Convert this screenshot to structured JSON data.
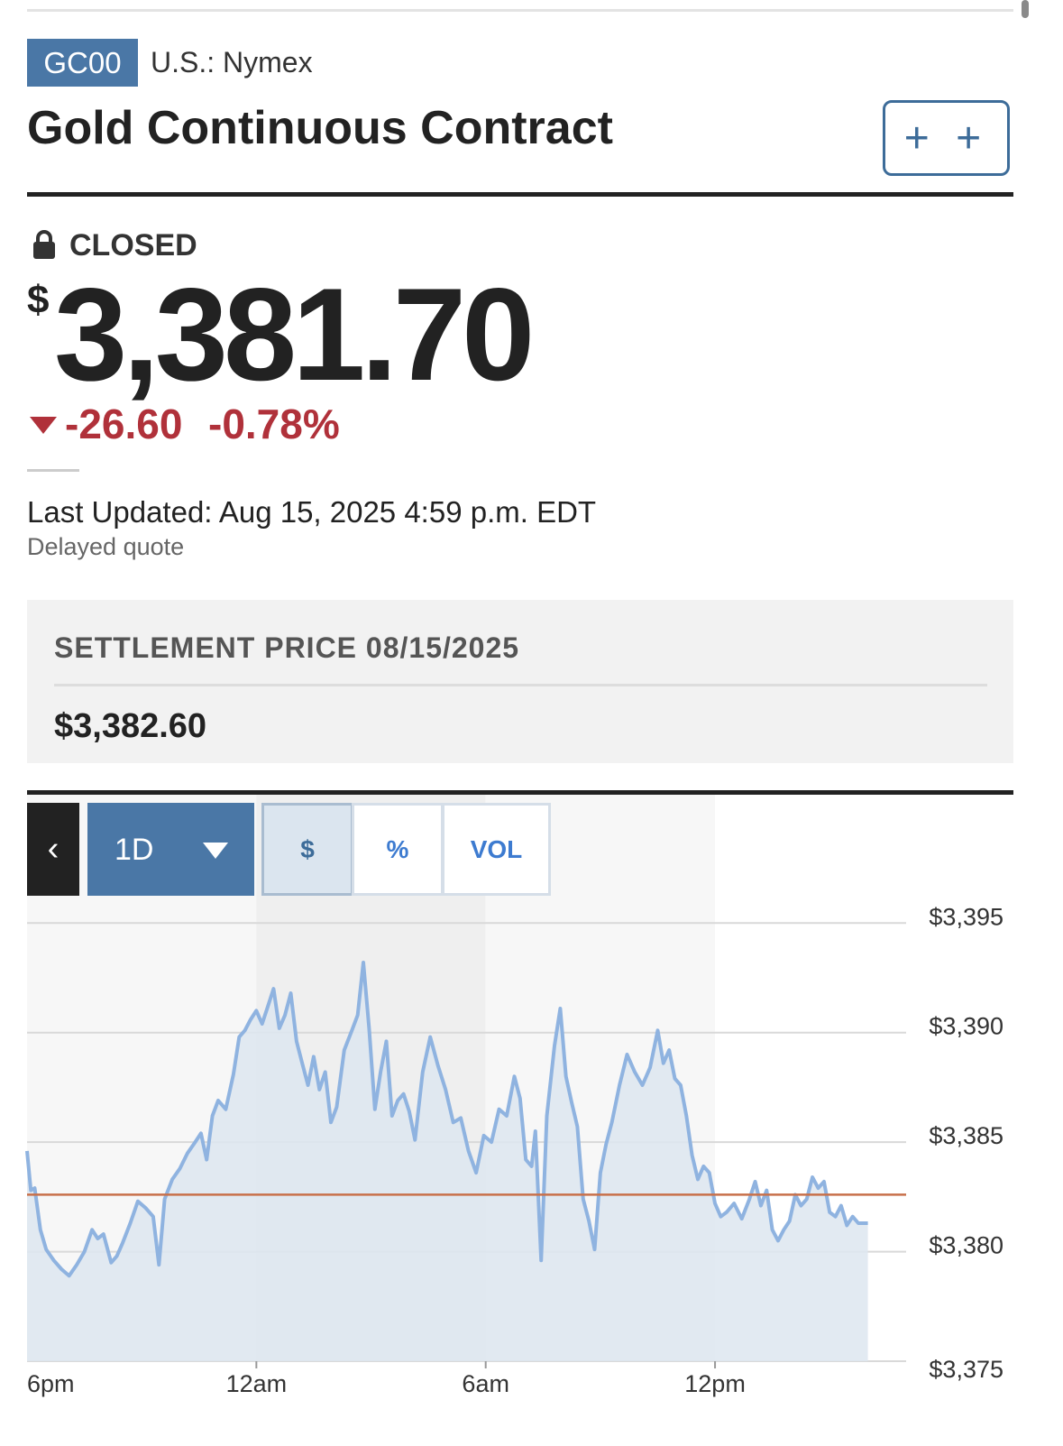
{
  "header": {
    "ticker": "GC00",
    "exchange": "U.S.: Nymex",
    "title": "Gold Continuous Contract",
    "watchlist_button": "+ +"
  },
  "quote": {
    "status": "CLOSED",
    "currency_symbol": "$",
    "price": "3,381.70",
    "change": "-26.60",
    "change_percent": "-0.78%",
    "last_updated": "Last Updated: Aug 15, 2025 4:59 p.m. EDT",
    "delayed_note": "Delayed quote"
  },
  "settlement": {
    "label": "SETTLEMENT PRICE 08/15/2025",
    "value": "$3,382.60"
  },
  "chart_controls": {
    "back_glyph": "‹",
    "range_label": "1D",
    "toggles": [
      "$",
      "%",
      "VOL"
    ],
    "selected_toggle": "$"
  },
  "colors": {
    "brand_blue": "#4a77a6",
    "down_red": "#b0313a",
    "line_blue": "#8fb3e0",
    "reference_line": "#c8704a"
  },
  "icons": [
    "lock-icon",
    "down-triangle-icon",
    "chevron-left-icon",
    "caret-down-icon"
  ],
  "chart_data": {
    "type": "area",
    "x_ticks": [
      "6pm",
      "12am",
      "6am",
      "12pm"
    ],
    "y_ticks": [
      "$3,395",
      "$3,390",
      "$3,385",
      "$3,380",
      "$3,375"
    ],
    "ylim": [
      3375,
      3396
    ],
    "reference_value": 3382.6,
    "grid": true,
    "x_hours_span": 23,
    "series": [
      {
        "points": [
          [
            0.0,
            3384.6
          ],
          [
            0.1,
            3382.8
          ],
          [
            0.2,
            3382.9
          ],
          [
            0.35,
            3381.0
          ],
          [
            0.5,
            3380.1
          ],
          [
            0.7,
            3379.6
          ],
          [
            0.9,
            3379.2
          ],
          [
            1.1,
            3378.9
          ],
          [
            1.3,
            3379.4
          ],
          [
            1.5,
            3380.0
          ],
          [
            1.7,
            3381.0
          ],
          [
            1.85,
            3380.6
          ],
          [
            2.0,
            3380.8
          ],
          [
            2.2,
            3379.5
          ],
          [
            2.35,
            3379.8
          ],
          [
            2.5,
            3380.4
          ],
          [
            2.7,
            3381.3
          ],
          [
            2.9,
            3382.3
          ],
          [
            3.1,
            3382.0
          ],
          [
            3.3,
            3381.6
          ],
          [
            3.45,
            3379.4
          ],
          [
            3.6,
            3382.4
          ],
          [
            3.8,
            3383.3
          ],
          [
            4.0,
            3383.8
          ],
          [
            4.2,
            3384.5
          ],
          [
            4.4,
            3385.0
          ],
          [
            4.55,
            3385.4
          ],
          [
            4.7,
            3384.2
          ],
          [
            4.85,
            3386.2
          ],
          [
            5.0,
            3386.9
          ],
          [
            5.2,
            3386.5
          ],
          [
            5.4,
            3388.1
          ],
          [
            5.55,
            3389.8
          ],
          [
            5.7,
            3390.1
          ],
          [
            5.85,
            3390.6
          ],
          [
            6.0,
            3391.0
          ],
          [
            6.15,
            3390.4
          ],
          [
            6.3,
            3391.2
          ],
          [
            6.45,
            3392.0
          ],
          [
            6.6,
            3390.2
          ],
          [
            6.75,
            3390.8
          ],
          [
            6.9,
            3391.8
          ],
          [
            7.05,
            3389.6
          ],
          [
            7.2,
            3388.6
          ],
          [
            7.35,
            3387.6
          ],
          [
            7.5,
            3388.9
          ],
          [
            7.65,
            3387.4
          ],
          [
            7.8,
            3388.2
          ],
          [
            7.95,
            3385.9
          ],
          [
            8.1,
            3386.6
          ],
          [
            8.3,
            3389.2
          ],
          [
            8.5,
            3390.1
          ],
          [
            8.65,
            3390.8
          ],
          [
            8.8,
            3393.2
          ],
          [
            8.95,
            3390.2
          ],
          [
            9.1,
            3386.5
          ],
          [
            9.25,
            3388.2
          ],
          [
            9.4,
            3389.6
          ],
          [
            9.55,
            3386.2
          ],
          [
            9.7,
            3386.9
          ],
          [
            9.85,
            3387.2
          ],
          [
            10.0,
            3386.4
          ],
          [
            10.15,
            3385.1
          ],
          [
            10.35,
            3388.2
          ],
          [
            10.55,
            3389.8
          ],
          [
            10.75,
            3388.5
          ],
          [
            10.95,
            3387.4
          ],
          [
            11.15,
            3385.9
          ],
          [
            11.35,
            3386.1
          ],
          [
            11.55,
            3384.6
          ],
          [
            11.75,
            3383.6
          ],
          [
            11.95,
            3385.3
          ],
          [
            12.15,
            3385.0
          ],
          [
            12.35,
            3386.5
          ],
          [
            12.55,
            3386.2
          ],
          [
            12.75,
            3388.0
          ],
          [
            12.9,
            3387.0
          ],
          [
            13.05,
            3384.2
          ],
          [
            13.2,
            3383.9
          ],
          [
            13.3,
            3385.5
          ],
          [
            13.45,
            3379.6
          ],
          [
            13.6,
            3386.2
          ],
          [
            13.8,
            3389.4
          ],
          [
            13.95,
            3391.1
          ],
          [
            14.1,
            3388.0
          ],
          [
            14.25,
            3386.8
          ],
          [
            14.4,
            3385.7
          ],
          [
            14.55,
            3382.4
          ],
          [
            14.7,
            3381.4
          ],
          [
            14.85,
            3380.1
          ],
          [
            15.0,
            3383.6
          ],
          [
            15.15,
            3384.9
          ],
          [
            15.3,
            3385.9
          ],
          [
            15.5,
            3387.6
          ],
          [
            15.7,
            3389.0
          ],
          [
            15.9,
            3388.2
          ],
          [
            16.1,
            3387.6
          ],
          [
            16.3,
            3388.4
          ],
          [
            16.5,
            3390.1
          ],
          [
            16.65,
            3388.6
          ],
          [
            16.8,
            3389.2
          ],
          [
            16.95,
            3387.9
          ],
          [
            17.1,
            3387.6
          ],
          [
            17.25,
            3386.2
          ],
          [
            17.4,
            3384.4
          ],
          [
            17.55,
            3383.3
          ],
          [
            17.7,
            3383.9
          ],
          [
            17.85,
            3383.6
          ],
          [
            18.0,
            3382.2
          ],
          [
            18.15,
            3381.6
          ],
          [
            18.3,
            3381.8
          ],
          [
            18.5,
            3382.2
          ],
          [
            18.7,
            3381.5
          ],
          [
            18.9,
            3382.4
          ],
          [
            19.05,
            3383.2
          ],
          [
            19.2,
            3382.1
          ],
          [
            19.35,
            3382.8
          ],
          [
            19.5,
            3381.0
          ],
          [
            19.65,
            3380.5
          ],
          [
            19.8,
            3381.0
          ],
          [
            19.95,
            3381.4
          ],
          [
            20.1,
            3382.6
          ],
          [
            20.25,
            3382.1
          ],
          [
            20.4,
            3382.4
          ],
          [
            20.55,
            3383.4
          ],
          [
            20.7,
            3382.9
          ],
          [
            20.85,
            3383.2
          ],
          [
            21.0,
            3381.8
          ],
          [
            21.15,
            3381.6
          ],
          [
            21.3,
            3382.1
          ],
          [
            21.45,
            3381.2
          ],
          [
            21.6,
            3381.6
          ],
          [
            21.75,
            3381.3
          ],
          [
            22.0,
            3381.3
          ]
        ]
      }
    ]
  }
}
